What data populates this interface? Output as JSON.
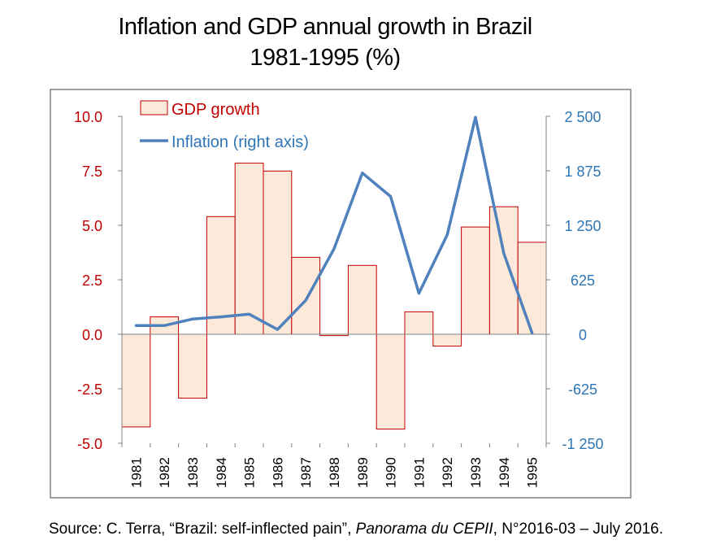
{
  "title": {
    "line1": "Inflation and GDP annual growth in Brazil",
    "line2": "1981-1995 (%)"
  },
  "source": {
    "prefix": "Source: C. Terra, “Brazil: self-inflected pain”, ",
    "publication": "Panorama du CEPII",
    "suffix": ", N°2016-03 – July 2016."
  },
  "colors": {
    "gdp_fill": "#fde9d9",
    "gdp_stroke": "#c00000",
    "left_axis_text": "#c00000",
    "inflation_line": "#4f81bd",
    "right_axis_text": "#2e75b6",
    "frame": "#808080"
  },
  "chart_data": {
    "type": "bar",
    "categories": [
      "1981",
      "1982",
      "1983",
      "1984",
      "1985",
      "1986",
      "1987",
      "1988",
      "1989",
      "1990",
      "1991",
      "1992",
      "1993",
      "1994",
      "1995"
    ],
    "series": [
      {
        "name": "GDP growth",
        "type": "bar",
        "axis": "left",
        "values": [
          -4.25,
          0.8,
          -2.93,
          5.4,
          7.85,
          7.49,
          3.53,
          -0.06,
          3.16,
          -4.35,
          1.03,
          -0.54,
          4.92,
          5.85,
          4.22
        ]
      },
      {
        "name": "Inflation (right axis)",
        "type": "line",
        "axis": "right",
        "values": [
          100,
          100,
          175,
          200,
          230,
          55,
          390,
          980,
          1850,
          1580,
          470,
          1140,
          2490,
          930,
          15
        ]
      }
    ],
    "y_left": {
      "lim": [
        -5.0,
        10.0
      ],
      "ticks": [
        10.0,
        7.5,
        5.0,
        2.5,
        0.0,
        -2.5,
        -5.0
      ],
      "tick_labels": [
        "10.0",
        "7.5",
        "5.0",
        "2.5",
        "0.0",
        "-2.5",
        "-5.0"
      ]
    },
    "y_right": {
      "lim": [
        -1250,
        2500
      ],
      "ticks": [
        2500,
        1875,
        1250,
        625,
        0,
        -625,
        -1250
      ],
      "tick_labels": [
        "2 500",
        "1 875",
        "1 250",
        "625",
        "0",
        "-625",
        "-1 250"
      ]
    },
    "legend_position": "top-left",
    "grid": false
  }
}
